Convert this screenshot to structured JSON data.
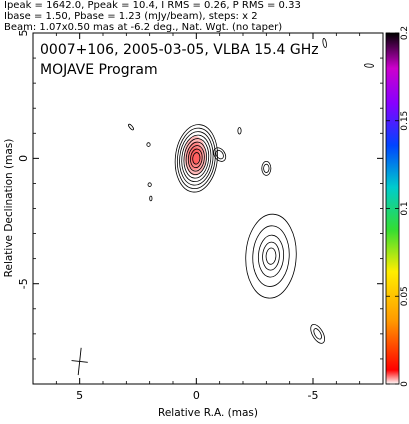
{
  "header": {
    "line1": "Ipeak = 1642.0, Ppeak = 10.4, I RMS = 0.26, P RMS = 0.33",
    "line2": "Ibase = 1.50, Pbase = 1.23 (mJy/beam), steps: x 2",
    "line3": "Beam: 1.07x0.50 mas at -6.2 deg., Nat. Wgt. (no taper)"
  },
  "plot": {
    "title": "0007+106, 2005-03-05, VLBA 15.4 GHz",
    "subtitle": "MOJAVE Program"
  },
  "chart_data": {
    "type": "heatmap",
    "xlabel": "Relative R.A. (mas)",
    "ylabel": "Relative Declination (mas)",
    "xlim": [
      7.0,
      -8.0
    ],
    "ylim": [
      -9.0,
      5.0
    ],
    "xticks": [
      5,
      0,
      -5
    ],
    "xtick_labels": [
      "5",
      "0",
      "-5"
    ],
    "yticks": [
      5,
      0,
      -5
    ],
    "ytick_labels": [
      "5",
      "0",
      "-5"
    ],
    "colorbar": {
      "ticks": [
        0,
        0.05,
        0.1,
        0.15,
        0.2
      ],
      "tick_labels": [
        "0",
        "0.05",
        "0.1",
        "0.15",
        "0.2"
      ],
      "range": [
        0,
        0.2
      ]
    },
    "core": {
      "x": 0.0,
      "y": 0.0,
      "semi_major": [
        0.25,
        0.4,
        0.55,
        0.7,
        0.85,
        1.0,
        1.15,
        1.3,
        1.45
      ],
      "axis_ratio": 0.62,
      "pa_deg": -6
    },
    "polarized_core": {
      "x": 0.05,
      "y": 0.1,
      "semi_major": [
        0.35,
        0.6,
        0.85
      ],
      "axis_ratio": 0.55,
      "level": 0.02
    },
    "components": [
      {
        "x": -3.2,
        "y": -3.9,
        "semi_major": [
          0.35,
          0.6,
          0.9,
          1.3,
          1.8
        ],
        "axis_ratio": 0.6,
        "pa_deg": -3
      },
      {
        "x": -5.2,
        "y": -7.0,
        "semi_major": [
          0.25,
          0.45
        ],
        "axis_ratio": 0.5,
        "pa_deg": 30
      },
      {
        "x": -3.0,
        "y": -0.4,
        "semi_major": [
          0.18,
          0.3
        ],
        "axis_ratio": 0.65,
        "pa_deg": 0
      },
      {
        "x": -1.0,
        "y": 0.15,
        "semi_major": [
          0.2,
          0.32
        ],
        "axis_ratio": 0.7,
        "pa_deg": 35
      },
      {
        "x": -1.85,
        "y": 1.1,
        "semi_major": [
          0.14
        ],
        "axis_ratio": 0.5,
        "pa_deg": 0
      },
      {
        "x": 2.8,
        "y": 1.25,
        "semi_major": [
          0.15
        ],
        "axis_ratio": 0.4,
        "pa_deg": 40
      },
      {
        "x": 2.05,
        "y": 0.55,
        "semi_major": [
          0.08
        ],
        "axis_ratio": 0.9,
        "pa_deg": 0
      },
      {
        "x": 2.0,
        "y": -1.05,
        "semi_major": [
          0.08
        ],
        "axis_ratio": 0.9,
        "pa_deg": 0
      },
      {
        "x": 1.95,
        "y": -1.6,
        "semi_major": [
          0.1
        ],
        "axis_ratio": 0.5,
        "pa_deg": 0
      },
      {
        "x": -7.4,
        "y": 3.7,
        "semi_major": [
          0.2
        ],
        "axis_ratio": 0.35,
        "pa_deg": 85
      },
      {
        "x": -5.5,
        "y": 4.6,
        "semi_major": [
          0.2
        ],
        "axis_ratio": 0.35,
        "pa_deg": 10
      }
    ],
    "beam": {
      "x": 5.0,
      "y": -8.1,
      "major_mas": 1.07,
      "minor_mas": 0.5,
      "pa_deg": -6.2
    }
  }
}
